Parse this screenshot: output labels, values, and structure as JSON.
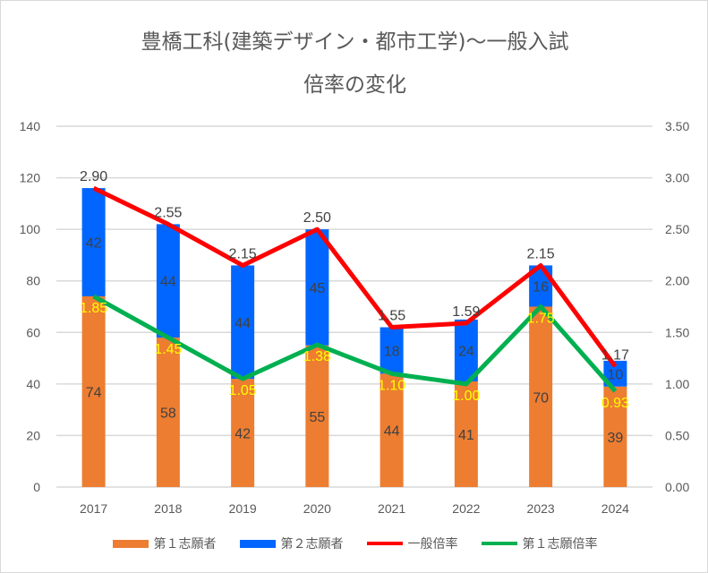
{
  "chart_data": {
    "type": "bar",
    "title_lines": [
      "豊橋工科(建築デザイン・都市工学)～一般入試",
      "倍率の変化"
    ],
    "categories": [
      "2017",
      "2018",
      "2019",
      "2020",
      "2021",
      "2022",
      "2023",
      "2024"
    ],
    "ylim_left": [
      0,
      140
    ],
    "yticks_left": [
      "0",
      "20",
      "40",
      "60",
      "80",
      "100",
      "120",
      "140"
    ],
    "ylim_right": [
      0,
      3.5
    ],
    "yticks_right": [
      "0.00",
      "0.50",
      "1.00",
      "1.50",
      "2.00",
      "2.50",
      "3.00",
      "3.50"
    ],
    "grid": true,
    "legend_position": "bottom",
    "series": [
      {
        "name": "第１志願者",
        "type": "bar",
        "stack": true,
        "axis": "left",
        "color": "#ED7D31",
        "label_color": "#404040",
        "values": [
          74,
          58,
          42,
          55,
          44,
          41,
          70,
          39
        ]
      },
      {
        "name": "第２志願者",
        "type": "bar",
        "stack": true,
        "axis": "left",
        "color": "#0066FF",
        "label_color": "#404040",
        "values": [
          42,
          44,
          44,
          45,
          18,
          24,
          16,
          10
        ]
      },
      {
        "name": "一般倍率",
        "type": "line",
        "axis": "right",
        "color": "#FF0000",
        "label_color": "#404040",
        "values": [
          2.9,
          2.55,
          2.15,
          2.5,
          1.55,
          1.59,
          2.15,
          1.17
        ]
      },
      {
        "name": "第１志願倍率",
        "type": "line",
        "axis": "right",
        "color": "#00B050",
        "label_color": "#FFFF00",
        "values": [
          1.85,
          1.45,
          1.05,
          1.38,
          1.1,
          1.0,
          1.75,
          0.93
        ]
      }
    ]
  }
}
